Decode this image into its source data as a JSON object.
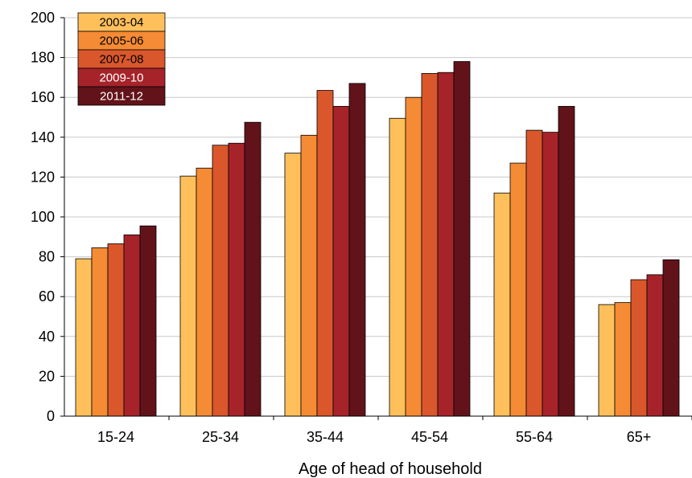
{
  "chart_data": {
    "type": "bar",
    "title": "",
    "xlabel": "Age of head of household",
    "ylabel": "",
    "ylim": [
      0,
      200
    ],
    "yticks": [
      0,
      20,
      40,
      60,
      80,
      100,
      120,
      140,
      160,
      180,
      200
    ],
    "categories": [
      "15-24",
      "25-34",
      "35-44",
      "45-54",
      "55-64",
      "65+"
    ],
    "legend_position": "top-left",
    "grid": true,
    "series": [
      {
        "name": "2003-04",
        "color": "#FFC05C",
        "values": [
          79,
          120.5,
          132,
          149.5,
          112,
          56
        ]
      },
      {
        "name": "2005-06",
        "color": "#F58B35",
        "values": [
          84.5,
          124.5,
          141,
          160,
          127,
          57
        ]
      },
      {
        "name": "2007-08",
        "color": "#D9572B",
        "values": [
          86.5,
          136,
          163.5,
          172,
          143.5,
          68.5
        ]
      },
      {
        "name": "2009-10",
        "color": "#A6232A",
        "values": [
          91,
          137,
          155.5,
          172.5,
          142.5,
          71
        ]
      },
      {
        "name": "2011-12",
        "color": "#62131A",
        "values": [
          95.5,
          147.5,
          167,
          178,
          155.5,
          78.5
        ]
      }
    ]
  }
}
